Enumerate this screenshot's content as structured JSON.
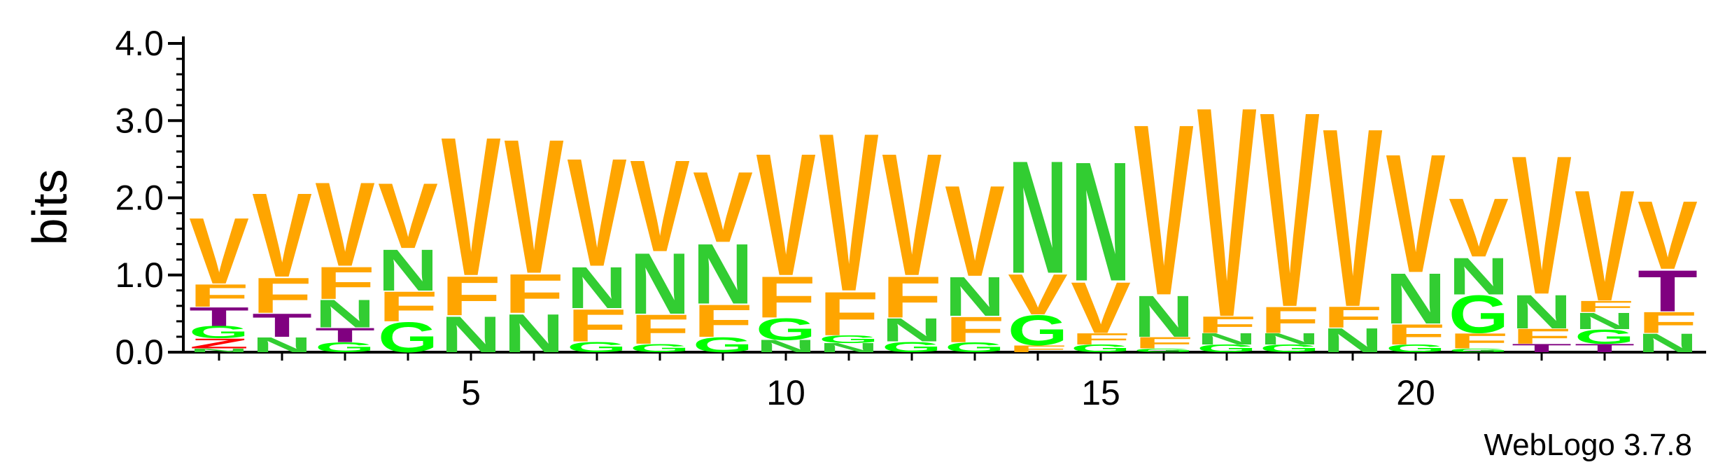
{
  "chart_data": {
    "type": "sequence-logo",
    "ylabel": "bits",
    "ylim": [
      0,
      4.0
    ],
    "y_ticks": [
      "0.0",
      "1.0",
      "2.0",
      "3.0",
      "4.0"
    ],
    "x_tick_labels": [
      "5",
      "10",
      "15",
      "20"
    ],
    "x_tick_positions": [
      5,
      10,
      15,
      20
    ],
    "footer": "WebLogo 3.7.8",
    "colors": {
      "V": "#FFA500",
      "F": "#FFA500",
      "N": "#32CD32",
      "G": "#00FF00",
      "T": "#800080",
      "Z": "#FF0000"
    },
    "positions": [
      {
        "pos": 1,
        "stack": [
          [
            "N",
            0.05
          ],
          [
            "Z",
            0.13
          ],
          [
            "G",
            0.16
          ],
          [
            "T",
            0.25
          ],
          [
            "F",
            0.3
          ],
          [
            "V",
            0.88
          ]
        ]
      },
      {
        "pos": 2,
        "stack": [
          [
            "N",
            0.2
          ],
          [
            "T",
            0.31
          ],
          [
            "F",
            0.47
          ],
          [
            "V",
            1.12
          ]
        ]
      },
      {
        "pos": 3,
        "stack": [
          [
            "G",
            0.13
          ],
          [
            "T",
            0.19
          ],
          [
            "N",
            0.37
          ],
          [
            "F",
            0.43
          ],
          [
            "V",
            1.12
          ]
        ]
      },
      {
        "pos": 4,
        "stack": [
          [
            "G",
            0.4
          ],
          [
            "F",
            0.4
          ],
          [
            "N",
            0.55
          ],
          [
            "V",
            0.87
          ]
        ]
      },
      {
        "pos": 5,
        "stack": [
          [
            "N",
            0.48
          ],
          [
            "F",
            0.52
          ],
          [
            "V",
            1.85
          ]
        ]
      },
      {
        "pos": 6,
        "stack": [
          [
            "N",
            0.51
          ],
          [
            "F",
            0.52
          ],
          [
            "V",
            1.79
          ]
        ]
      },
      {
        "pos": 7,
        "stack": [
          [
            "G",
            0.14
          ],
          [
            "F",
            0.43
          ],
          [
            "N",
            0.55
          ],
          [
            "V",
            1.44
          ]
        ]
      },
      {
        "pos": 8,
        "stack": [
          [
            "G",
            0.11
          ],
          [
            "F",
            0.39
          ],
          [
            "N",
            0.81
          ],
          [
            "V",
            1.22
          ]
        ]
      },
      {
        "pos": 9,
        "stack": [
          [
            "G",
            0.2
          ],
          [
            "F",
            0.43
          ],
          [
            "N",
            0.8
          ],
          [
            "V",
            0.94
          ]
        ]
      },
      {
        "pos": 10,
        "stack": [
          [
            "N",
            0.16
          ],
          [
            "G",
            0.29
          ],
          [
            "F",
            0.55
          ],
          [
            "V",
            1.63
          ]
        ]
      },
      {
        "pos": 11,
        "stack": [
          [
            "N",
            0.12
          ],
          [
            "G",
            0.1
          ],
          [
            "F",
            0.58
          ],
          [
            "V",
            2.11
          ]
        ]
      },
      {
        "pos": 12,
        "stack": [
          [
            "G",
            0.14
          ],
          [
            "N",
            0.31
          ],
          [
            "F",
            0.55
          ],
          [
            "V",
            1.63
          ]
        ]
      },
      {
        "pos": 13,
        "stack": [
          [
            "G",
            0.13
          ],
          [
            "F",
            0.34
          ],
          [
            "N",
            0.52
          ],
          [
            "V",
            1.21
          ]
        ]
      },
      {
        "pos": 14,
        "stack": [
          [
            "F",
            0.09
          ],
          [
            "G",
            0.4
          ],
          [
            "V",
            0.54
          ],
          [
            "N",
            1.5
          ]
        ]
      },
      {
        "pos": 15,
        "stack": [
          [
            "G",
            0.1
          ],
          [
            "F",
            0.15
          ],
          [
            "V",
            0.68
          ],
          [
            "N",
            1.59
          ]
        ]
      },
      {
        "pos": 16,
        "stack": [
          [
            "G",
            0.05
          ],
          [
            "F",
            0.15
          ],
          [
            "N",
            0.55
          ],
          [
            "V",
            2.28
          ]
        ]
      },
      {
        "pos": 17,
        "stack": [
          [
            "G",
            0.1
          ],
          [
            "N",
            0.15
          ],
          [
            "F",
            0.22
          ],
          [
            "V",
            2.8
          ]
        ]
      },
      {
        "pos": 18,
        "stack": [
          [
            "G",
            0.1
          ],
          [
            "N",
            0.15
          ],
          [
            "F",
            0.35
          ],
          [
            "V",
            2.6
          ]
        ]
      },
      {
        "pos": 19,
        "stack": [
          [
            "N",
            0.32
          ],
          [
            "F",
            0.28
          ],
          [
            "V",
            2.38
          ]
        ]
      },
      {
        "pos": 20,
        "stack": [
          [
            "G",
            0.1
          ],
          [
            "F",
            0.27
          ],
          [
            "N",
            0.67
          ],
          [
            "V",
            1.58
          ]
        ]
      },
      {
        "pos": 21,
        "stack": [
          [
            "G",
            0.05
          ],
          [
            "F",
            0.2
          ],
          [
            "G",
            0.5
          ],
          [
            "N",
            0.49
          ],
          [
            "V",
            0.78
          ]
        ]
      },
      {
        "pos": 22,
        "stack": [
          [
            "T",
            0.11
          ],
          [
            "F",
            0.2
          ],
          [
            "N",
            0.45
          ],
          [
            "V",
            1.85
          ]
        ]
      },
      {
        "pos": 23,
        "stack": [
          [
            "T",
            0.11
          ],
          [
            "G",
            0.19
          ],
          [
            "N",
            0.22
          ],
          [
            "F",
            0.15
          ],
          [
            "V",
            1.48
          ]
        ]
      },
      {
        "pos": 24,
        "stack": [
          [
            "N",
            0.25
          ],
          [
            "F",
            0.28
          ],
          [
            "T",
            0.55
          ],
          [
            "V",
            0.91
          ]
        ]
      }
    ]
  }
}
